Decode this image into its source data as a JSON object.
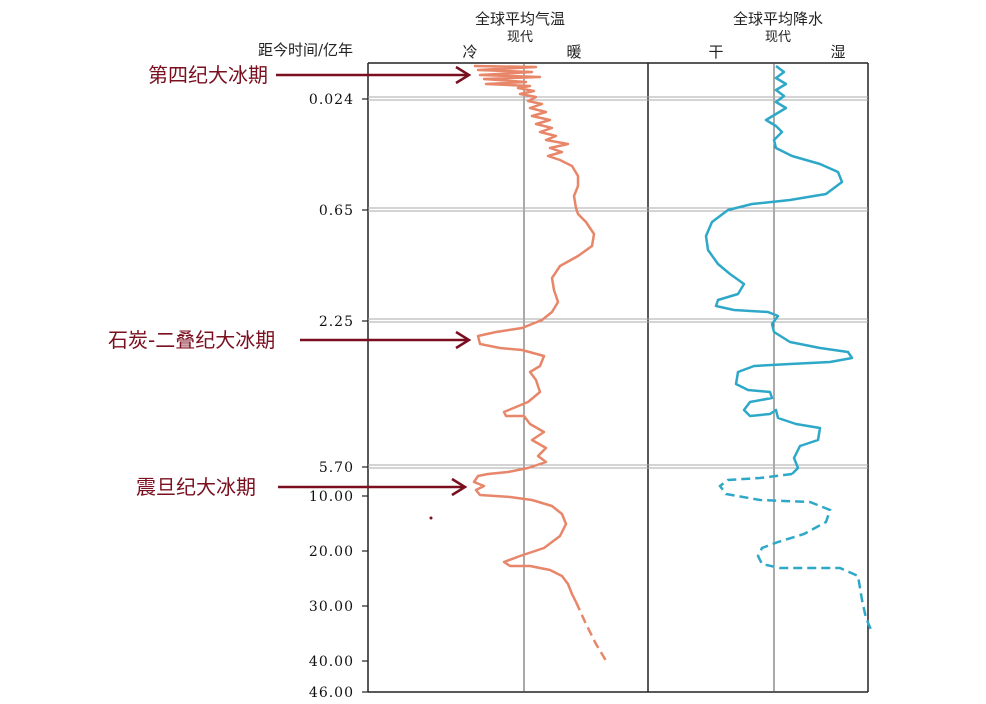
{
  "headers": {
    "temperature": {
      "title": "全球平均气温",
      "center": "现代",
      "left": "冷",
      "right": "暖"
    },
    "precipitation": {
      "title": "全球平均降水",
      "center": "现代",
      "left": "干",
      "right": "湿"
    },
    "axis_title": "距今时间/亿年"
  },
  "time_ticks": [
    "0.024",
    "0.65",
    "2.25",
    "5.70",
    "10.00",
    "20.00",
    "30.00",
    "40.00",
    "46.00"
  ],
  "ice_ages": [
    {
      "name": "第四纪大冰期"
    },
    {
      "name": "石炭-二叠纪大冰期"
    },
    {
      "name": "震旦纪大冰期"
    }
  ],
  "colors": {
    "temperature": "#e8866a",
    "precipitation": "#2ea8c8",
    "annotation": "#7a0f1f",
    "frame": "#222222",
    "divider": "#b0b0b0"
  }
}
